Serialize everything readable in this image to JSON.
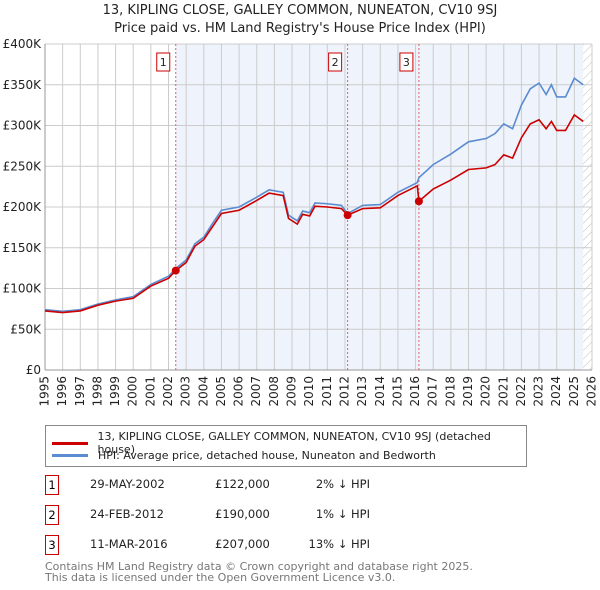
{
  "chart_data": {
    "type": "line",
    "title": "13, KIPLING CLOSE, GALLEY COMMON, NUNEATON, CV10 9SJ",
    "subtitle": "Price paid vs. HM Land Registry's House Price Index (HPI)",
    "xlim": [
      1995,
      2026
    ],
    "ylim": [
      0,
      400000
    ],
    "x_ticks": [
      "1995",
      "1996",
      "1997",
      "1998",
      "1999",
      "2000",
      "2001",
      "2002",
      "2003",
      "2004",
      "2005",
      "2006",
      "2007",
      "2008",
      "2009",
      "2010",
      "2011",
      "2012",
      "2013",
      "2014",
      "2015",
      "2016",
      "2017",
      "2018",
      "2019",
      "2020",
      "2021",
      "2022",
      "2023",
      "2024",
      "2025",
      "2026"
    ],
    "y_ticks": [
      {
        "v": 0,
        "label": "£0"
      },
      {
        "v": 50000,
        "label": "£50K"
      },
      {
        "v": 100000,
        "label": "£100K"
      },
      {
        "v": 150000,
        "label": "£150K"
      },
      {
        "v": 200000,
        "label": "£200K"
      },
      {
        "v": 250000,
        "label": "£250K"
      },
      {
        "v": 300000,
        "label": "£300K"
      },
      {
        "v": 350000,
        "label": "£350K"
      },
      {
        "v": 400000,
        "label": "£400K"
      }
    ],
    "grid": true,
    "series": [
      {
        "name": "13, KIPLING CLOSE, GALLEY COMMON, NUNEATON, CV10 9SJ (detached house)",
        "color": "#cc0000",
        "x": [
          1995,
          1996,
          1997,
          1998,
          1999,
          2000,
          2001,
          2002,
          2002.41,
          2003,
          2003.5,
          2004,
          2004.5,
          2005,
          2006,
          2007,
          2007.7,
          2008.5,
          2008.8,
          2009.3,
          2009.6,
          2010,
          2010.3,
          2011,
          2011.8,
          2012.15,
          2013,
          2014,
          2015,
          2016.1,
          2016.19,
          2017,
          2018,
          2019,
          2020,
          2020.5,
          2021,
          2021.5,
          2022,
          2022.5,
          2023,
          2023.4,
          2023.7,
          2024,
          2024.5,
          2025,
          2025.5
        ],
        "y": [
          72500,
          70500,
          72500,
          79500,
          84500,
          88000,
          103000,
          112500,
          122000,
          132000,
          152000,
          160000,
          176000,
          192000,
          196000,
          208000,
          217000,
          214000,
          186000,
          179000,
          191000,
          189000,
          201000,
          200000,
          198000,
          190000,
          198000,
          199000,
          214000,
          226000,
          207000,
          222000,
          233000,
          246000,
          248000,
          252000,
          264000,
          260000,
          285000,
          302000,
          307000,
          296000,
          305000,
          294000,
          294000,
          313000,
          305000
        ]
      },
      {
        "name": "HPI: Average price, detached house, Nuneaton and Bedworth",
        "color": "#5b8bd0",
        "x": [
          1995,
          1996,
          1997,
          1998,
          1999,
          2000,
          2001,
          2002,
          2002.41,
          2003,
          2003.5,
          2004,
          2004.5,
          2005,
          2006,
          2007,
          2007.7,
          2008.5,
          2008.8,
          2009.3,
          2009.6,
          2010,
          2010.3,
          2011,
          2011.8,
          2012.15,
          2013,
          2014,
          2015,
          2016.1,
          2016.19,
          2017,
          2018,
          2019,
          2020,
          2020.5,
          2021,
          2021.5,
          2022,
          2022.5,
          2023,
          2023.4,
          2023.7,
          2024,
          2024.5,
          2025,
          2025.5
        ],
        "y": [
          74000,
          72000,
          74000,
          81000,
          86000,
          90000,
          105000,
          115000,
          124500,
          135000,
          155000,
          163000,
          180000,
          196000,
          200000,
          212000,
          221000,
          218000,
          190000,
          183000,
          195000,
          193000,
          205000,
          204000,
          202000,
          192000,
          202000,
          203000,
          218000,
          230000,
          236000,
          252000,
          265000,
          280000,
          284000,
          290000,
          302000,
          296000,
          325000,
          345000,
          352000,
          338000,
          350000,
          335000,
          335000,
          358000,
          350000
        ]
      }
    ],
    "sales": [
      {
        "n": "1",
        "x": 2002.41,
        "y": 122000,
        "date": "29-MAY-2002",
        "price": "£122,000",
        "hpi": "2% ↓ HPI"
      },
      {
        "n": "2",
        "x": 2012.15,
        "y": 190000,
        "date": "24-FEB-2012",
        "price": "£190,000",
        "hpi": "1% ↓ HPI"
      },
      {
        "n": "3",
        "x": 2016.19,
        "y": 207000,
        "date": "11-MAR-2016",
        "price": "£207,000",
        "hpi": "13% ↓ HPI"
      }
    ],
    "shade_from": 2002.41,
    "hatch_from": 2025.5,
    "legend": {
      "position": "below"
    }
  },
  "footer": {
    "line1": "Contains HM Land Registry data © Crown copyright and database right 2025.",
    "line2": "This data is licensed under the Open Government Licence v3.0."
  }
}
